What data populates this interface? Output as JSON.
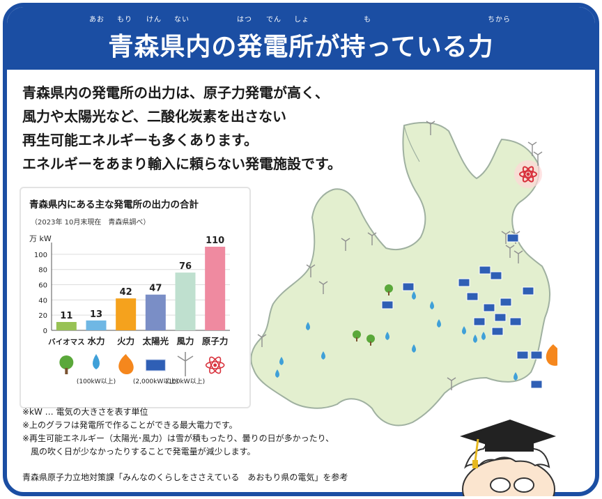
{
  "header": {
    "title": "青森県内の発電所が持っている力",
    "ruby": [
      "あお",
      "もり",
      "けん",
      "ない",
      "はつ",
      "でん",
      "しょ",
      "も",
      "ちから"
    ]
  },
  "intro_lines": [
    "青森県内の発電所の出力は、原子力発電が高く、",
    "風力や太陽光など、二酸化炭素を出さない",
    "再生可能エネルギーも多くあります。",
    "エネルギーをあまり輸入に頼らない発電施設です。"
  ],
  "chart_data": {
    "type": "bar",
    "title": "青森県内にある主な発電所の出力の合計",
    "subtitle": "（2023年 10月末現在　青森県調べ）",
    "ylabel": "万 kW",
    "ylim": [
      0,
      110
    ],
    "yticks": [
      0,
      20,
      40,
      60,
      80,
      100
    ],
    "categories": [
      "バイオマス",
      "水力",
      "火力",
      "太陽光",
      "風力",
      "原子力"
    ],
    "values": [
      11,
      13,
      42,
      47,
      76,
      110
    ],
    "colors": [
      "#98c255",
      "#6fb7e4",
      "#f5a21d",
      "#7a8ec6",
      "#bfe0cf",
      "#ef8aa0"
    ],
    "icons": [
      "tree-icon",
      "water-drop-icon",
      "fire-icon",
      "solar-panel-icon",
      "wind-turbine-icon",
      "atom-icon"
    ],
    "annotations": [
      "",
      "(100kW以上)",
      "",
      "(2,000kW以上)",
      "(100kW以上)",
      ""
    ],
    "grid": true
  },
  "notes": [
    "※kW … 電気の大きさを表す単位",
    "※上のグラフは発電所で作ることができる最大電力です。",
    "※再生可能エネルギー（太陽光･風力）は雪が積もったり、曇りの日が多かったり、",
    "　風の吹く日が少なかったりすることで発電量が減少します。"
  ],
  "source": "青森県原子力立地対策課「みんなのくらしをささえている　あおもり県の電気」を参考",
  "colors": {
    "brand_blue": "#1b4ea3",
    "map_fill": "#e3efcf",
    "map_stroke": "#9fb0a0"
  }
}
